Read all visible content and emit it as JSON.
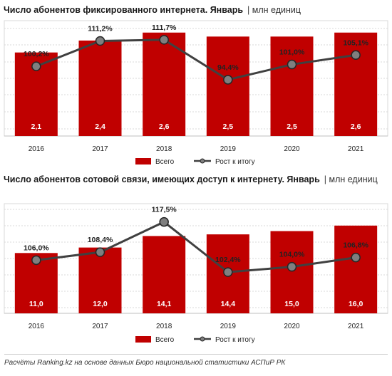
{
  "chart_data": [
    {
      "type": "bar",
      "title": "Число абонентов фиксированного интернета. Январь",
      "unit": "млн единиц",
      "categories": [
        "2016",
        "2017",
        "2018",
        "2019",
        "2020",
        "2021"
      ],
      "series": [
        {
          "name": "Всего",
          "type": "bar",
          "values": [
            2.1,
            2.4,
            2.6,
            2.5,
            2.5,
            2.6
          ],
          "labels": [
            "2,1",
            "2,4",
            "2,6",
            "2,5",
            "2,5",
            "2,6"
          ],
          "color": "#c00000"
        },
        {
          "name": "Рост к итогу",
          "type": "line",
          "values": [
            100.2,
            111.2,
            111.7,
            94.4,
            101.0,
            105.1
          ],
          "labels": [
            "100,2%",
            "111,2%",
            "111,7%",
            "94,4%",
            "101,0%",
            "105,1%"
          ],
          "color": "#404040"
        }
      ],
      "ylim": [
        0,
        2.9
      ],
      "ylim2": [
        70,
        120
      ],
      "grid": true,
      "legend": "bottom"
    },
    {
      "type": "bar",
      "title": "Число абонентов сотовой связи, имеющих доступ к интернету. Январь",
      "unit": "млн единиц",
      "categories": [
        "2016",
        "2017",
        "2018",
        "2019",
        "2020",
        "2021"
      ],
      "series": [
        {
          "name": "Всего",
          "type": "bar",
          "values": [
            11.0,
            12.0,
            14.1,
            14.4,
            15.0,
            16.0
          ],
          "labels": [
            "11,0",
            "12,0",
            "14,1",
            "14,4",
            "15,0",
            "16,0"
          ],
          "color": "#c00000"
        },
        {
          "name": "Рост к итогу",
          "type": "line",
          "values": [
            106.0,
            108.4,
            117.5,
            102.4,
            104.0,
            106.8
          ],
          "labels": [
            "106,0%",
            "108,4%",
            "117,5%",
            "102,4%",
            "104,0%",
            "106,8%"
          ],
          "color": "#404040"
        }
      ],
      "ylim": [
        0,
        20
      ],
      "ylim2": [
        90,
        123
      ],
      "grid": true,
      "legend": "bottom"
    }
  ],
  "footer": "Расчёты Ranking.kz на основе данных Бюро национальной  статистики АСПиР РК"
}
